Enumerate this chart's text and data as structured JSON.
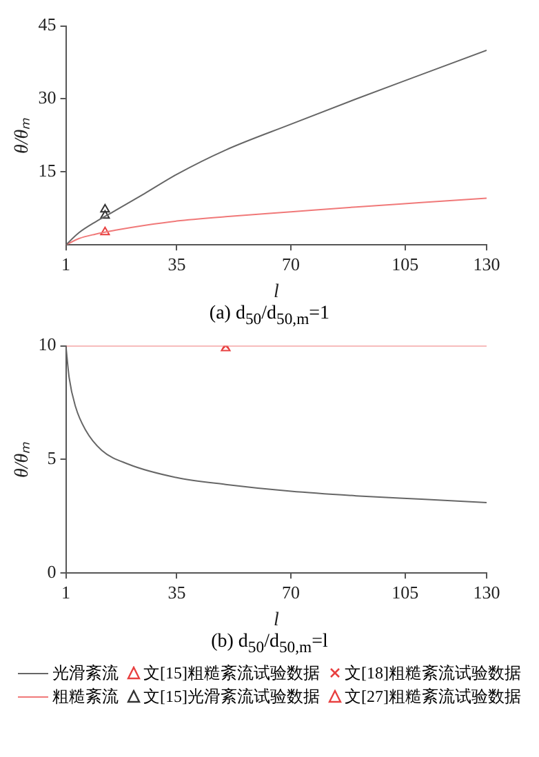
{
  "chart_data": [
    {
      "type": "line",
      "title": "(a) d$_{50}$/d$_{50,m}$=1",
      "xlabel": "l",
      "ylabel": "θ/θₘ",
      "xlim": [
        1,
        130
      ],
      "xticks": [
        1,
        35,
        70,
        105,
        130
      ],
      "ylim": [
        0,
        45
      ],
      "yticks": [
        15,
        30,
        45
      ],
      "grid": false,
      "legend": "bottom",
      "series": [
        {
          "color": "#666666",
          "marker": "none",
          "x": [
            1,
            5,
            10,
            16,
            25,
            35,
            50,
            70,
            90,
            110,
            130
          ],
          "values": [
            0,
            2.5,
            4.7,
            7,
            10.5,
            14.5,
            19.5,
            24.8,
            30,
            35,
            40
          ]
        },
        {
          "color": "#f07878",
          "marker": "none",
          "x": [
            1,
            5,
            10,
            16,
            25,
            35,
            50,
            70,
            90,
            110,
            130
          ],
          "values": [
            0,
            1.3,
            2.2,
            3,
            4,
            4.9,
            5.8,
            6.8,
            7.8,
            8.7,
            9.6
          ]
        },
        {
          "type": "scatter",
          "name": "文[15]粗糙紊流试验数据",
          "color": "#e84040",
          "marker": "triangle",
          "x": [
            13
          ],
          "values": [
            2.6
          ]
        },
        {
          "type": "scatter",
          "name": "文[15]光滑紊流试验数据",
          "color": "#333333",
          "marker": "triangle",
          "x": [
            13,
            13
          ],
          "values": [
            7.3,
            6
          ]
        }
      ]
    },
    {
      "type": "line",
      "title": "(b) d$_{50}$/d$_{50,m}$=l",
      "xlabel": "l",
      "ylabel": "θ/θₘ",
      "xlim": [
        1,
        130
      ],
      "xticks": [
        1,
        35,
        70,
        105,
        130
      ],
      "ylim": [
        0,
        10
      ],
      "yticks": [
        0,
        5,
        10
      ],
      "grid": false,
      "legend": "bottom",
      "series": [
        {
          "name": "光滑紊流",
          "color": "#666666",
          "marker": "none",
          "x": [
            1,
            2,
            4,
            7,
            12,
            20,
            35,
            50,
            70,
            90,
            110,
            130
          ],
          "values": [
            10,
            8.6,
            7.3,
            6.3,
            5.4,
            4.8,
            4.2,
            3.9,
            3.6,
            3.4,
            3.25,
            3.1
          ]
        },
        {
          "name": "粗糙紊流",
          "color": "#f07878",
          "marker": "none",
          "x": [
            1,
            130
          ],
          "values": [
            10,
            10
          ]
        },
        {
          "type": "scatter",
          "name": "文[18]粗糙紊流试验数据",
          "color": "#e84040",
          "marker": "cross",
          "x": [
            50
          ],
          "values": [
            10
          ]
        },
        {
          "type": "scatter",
          "name": "文[27]粗糙紊流试验数据",
          "color": "#e84040",
          "marker": "triangle",
          "x": [
            50
          ],
          "values": [
            9.9
          ]
        }
      ]
    }
  ]
}
